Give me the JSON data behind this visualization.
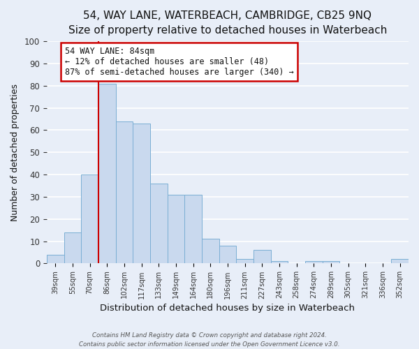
{
  "title": "54, WAY LANE, WATERBEACH, CAMBRIDGE, CB25 9NQ",
  "subtitle": "Size of property relative to detached houses in Waterbeach",
  "xlabel": "Distribution of detached houses by size in Waterbeach",
  "ylabel": "Number of detached properties",
  "footer_line1": "Contains HM Land Registry data © Crown copyright and database right 2024.",
  "footer_line2": "Contains public sector information licensed under the Open Government Licence v3.0.",
  "bar_labels": [
    "39sqm",
    "55sqm",
    "70sqm",
    "86sqm",
    "102sqm",
    "117sqm",
    "133sqm",
    "149sqm",
    "164sqm",
    "180sqm",
    "196sqm",
    "211sqm",
    "227sqm",
    "243sqm",
    "258sqm",
    "274sqm",
    "289sqm",
    "305sqm",
    "321sqm",
    "336sqm",
    "352sqm"
  ],
  "bar_values": [
    4,
    14,
    40,
    81,
    64,
    63,
    36,
    31,
    31,
    11,
    8,
    2,
    6,
    1,
    0,
    1,
    1,
    0,
    0,
    0,
    2
  ],
  "bar_color": "#c9d9ee",
  "bar_edge_color": "#7aaed4",
  "vline_color": "#cc0000",
  "annotation_title": "54 WAY LANE: 84sqm",
  "annotation_line1": "← 12% of detached houses are smaller (48)",
  "annotation_line2": "87% of semi-detached houses are larger (340) →",
  "annotation_box_color": "#ffffff",
  "annotation_box_edge": "#cc0000",
  "ylim": [
    0,
    100
  ],
  "background_color": "#e8eef8",
  "grid_color": "#ffffff",
  "tick_color": "#333333",
  "title_fontsize": 11,
  "subtitle_fontsize": 10
}
